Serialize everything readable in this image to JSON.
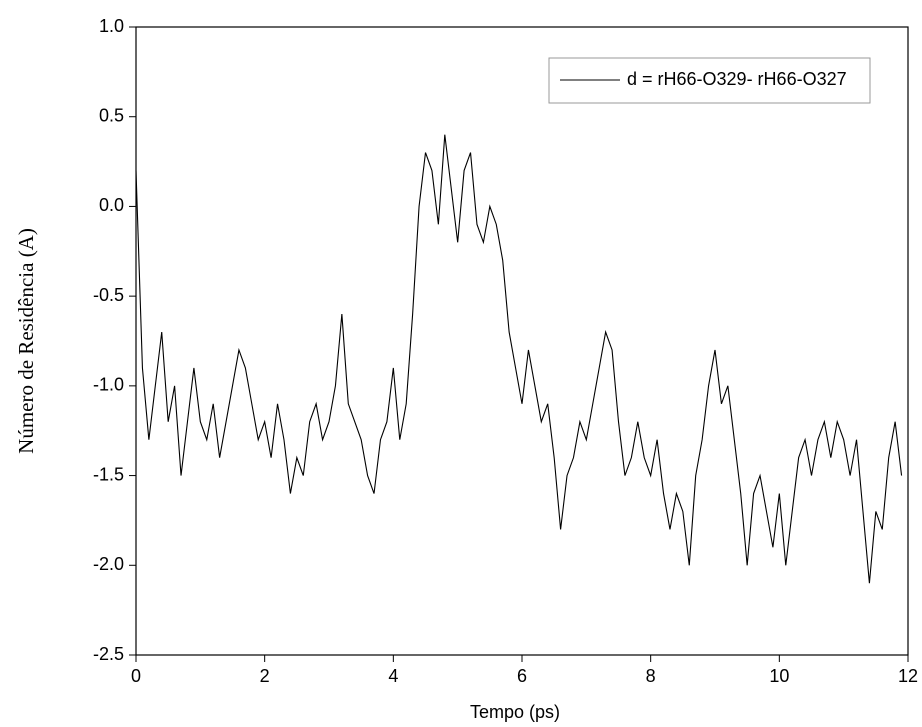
{
  "chart_data": {
    "type": "line",
    "xlabel": "Tempo (ps)",
    "ylabel": "Número de Residência (A)",
    "x": [
      0.0,
      0.1,
      0.2,
      0.3,
      0.4,
      0.5,
      0.6,
      0.7,
      0.8,
      0.9,
      1.0,
      1.1,
      1.2,
      1.3,
      1.4,
      1.5,
      1.6,
      1.7,
      1.8,
      1.9,
      2.0,
      2.1,
      2.2,
      2.3,
      2.4,
      2.5,
      2.6,
      2.7,
      2.8,
      2.9,
      3.0,
      3.1,
      3.2,
      3.3,
      3.4,
      3.5,
      3.6,
      3.7,
      3.8,
      3.9,
      4.0,
      4.1,
      4.2,
      4.3,
      4.4,
      4.5,
      4.6,
      4.7,
      4.8,
      4.9,
      5.0,
      5.1,
      5.2,
      5.3,
      5.4,
      5.5,
      5.6,
      5.7,
      5.8,
      5.9,
      6.0,
      6.1,
      6.2,
      6.3,
      6.4,
      6.5,
      6.6,
      6.7,
      6.8,
      6.9,
      7.0,
      7.1,
      7.2,
      7.3,
      7.4,
      7.5,
      7.6,
      7.7,
      7.8,
      7.9,
      8.0,
      8.1,
      8.2,
      8.3,
      8.4,
      8.5,
      8.6,
      8.7,
      8.8,
      8.9,
      9.0,
      9.1,
      9.2,
      9.3,
      9.4,
      9.5,
      9.6,
      9.7,
      9.8,
      9.9,
      10.0,
      10.1,
      10.2,
      10.3,
      10.4,
      10.5,
      10.6,
      10.7,
      10.8,
      10.9,
      11.0,
      11.1,
      11.2,
      11.3,
      11.4,
      11.5,
      11.6,
      11.7,
      11.8,
      11.9
    ],
    "series": [
      {
        "name": "d = rH66-O329- rH66-O327",
        "color": "#000000",
        "values": [
          0.2,
          -0.9,
          -1.3,
          -1.0,
          -0.7,
          -1.2,
          -1.0,
          -1.5,
          -1.2,
          -0.9,
          -1.2,
          -1.3,
          -1.1,
          -1.4,
          -1.2,
          -1.0,
          -0.8,
          -0.9,
          -1.1,
          -1.3,
          -1.2,
          -1.4,
          -1.1,
          -1.3,
          -1.6,
          -1.4,
          -1.5,
          -1.2,
          -1.1,
          -1.3,
          -1.2,
          -1.0,
          -0.6,
          -1.1,
          -1.2,
          -1.3,
          -1.5,
          -1.6,
          -1.3,
          -1.2,
          -0.9,
          -1.3,
          -1.1,
          -0.6,
          0.0,
          0.3,
          0.2,
          -0.1,
          0.4,
          0.1,
          -0.2,
          0.2,
          0.3,
          -0.1,
          -0.2,
          0.0,
          -0.1,
          -0.3,
          -0.7,
          -0.9,
          -1.1,
          -0.8,
          -1.0,
          -1.2,
          -1.1,
          -1.4,
          -1.8,
          -1.5,
          -1.4,
          -1.2,
          -1.3,
          -1.1,
          -0.9,
          -0.7,
          -0.8,
          -1.2,
          -1.5,
          -1.4,
          -1.2,
          -1.4,
          -1.5,
          -1.3,
          -1.6,
          -1.8,
          -1.6,
          -1.7,
          -2.0,
          -1.5,
          -1.3,
          -1.0,
          -0.8,
          -1.1,
          -1.0,
          -1.3,
          -1.6,
          -2.0,
          -1.6,
          -1.5,
          -1.7,
          -1.9,
          -1.6,
          -2.0,
          -1.7,
          -1.4,
          -1.3,
          -1.5,
          -1.3,
          -1.2,
          -1.4,
          -1.2,
          -1.3,
          -1.5,
          -1.3,
          -1.7,
          -2.1,
          -1.7,
          -1.8,
          -1.4,
          -1.2,
          -1.5
        ]
      }
    ],
    "xlim": [
      0,
      12
    ],
    "xticks": [
      0,
      2,
      4,
      6,
      8,
      10,
      12
    ],
    "ylim": [
      -2.5,
      1.0
    ],
    "yticks": [
      -2.5,
      {
        "value": -2,
        "label": "-2.0"
      },
      -1.5,
      {
        "value": -1,
        "label": "-1.0"
      },
      -0.5,
      {
        "value": 0,
        "label": "0.0"
      },
      0.5,
      {
        "value": 1,
        "label": "1.0"
      }
    ],
    "legend": "upper right"
  }
}
